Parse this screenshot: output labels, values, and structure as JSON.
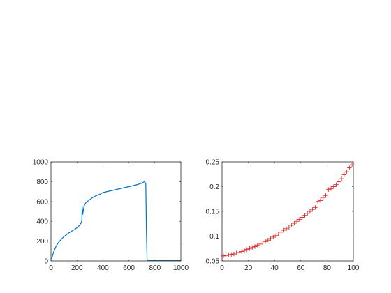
{
  "chart_data": [
    {
      "type": "line",
      "title": "",
      "xlabel": "",
      "ylabel": "",
      "xlim": [
        0,
        1000
      ],
      "ylim": [
        0,
        1000
      ],
      "xticks": [
        0,
        200,
        400,
        600,
        800,
        1000
      ],
      "yticks": [
        0,
        200,
        400,
        600,
        800,
        1000
      ],
      "xtick_labels": [
        "0",
        "200",
        "400",
        "600",
        "800",
        "1000"
      ],
      "ytick_labels": [
        "0",
        "200",
        "400",
        "600",
        "800",
        "1000"
      ],
      "grid": false,
      "color": "#0072BD",
      "series": [
        {
          "x": [
            5,
            20,
            40,
            60,
            80,
            100,
            120,
            140,
            160,
            180,
            200,
            220,
            235,
            238,
            240,
            245,
            250,
            255,
            260,
            270,
            280,
            300,
            320,
            350,
            380,
            400,
            450,
            500,
            550,
            600,
            650,
            700,
            720,
            725,
            730,
            735,
            740,
            800,
            900,
            1000
          ],
          "y": [
            20,
            90,
            150,
            190,
            220,
            245,
            265,
            285,
            300,
            315,
            335,
            360,
            390,
            410,
            550,
            470,
            520,
            550,
            570,
            590,
            600,
            620,
            640,
            660,
            675,
            690,
            705,
            720,
            735,
            750,
            765,
            785,
            800,
            790,
            785,
            300,
            5,
            5,
            5,
            5
          ]
        }
      ]
    },
    {
      "type": "scatter",
      "title": "",
      "xlabel": "",
      "ylabel": "",
      "xlim": [
        0,
        100
      ],
      "ylim": [
        0.05,
        0.25
      ],
      "xticks": [
        0,
        20,
        40,
        60,
        80,
        100
      ],
      "yticks": [
        0.05,
        0.1,
        0.15,
        0.2,
        0.25
      ],
      "xtick_labels": [
        "0",
        "20",
        "40",
        "60",
        "80",
        "100"
      ],
      "ytick_labels": [
        "0.05",
        "0.1",
        "0.15",
        "0.2",
        "0.25"
      ],
      "grid": false,
      "marker": "+",
      "color": "#D62728",
      "series": [
        {
          "x": [
            1,
            3,
            5,
            7,
            9,
            11,
            13,
            15,
            17,
            19,
            21,
            23,
            25,
            27,
            29,
            31,
            33,
            35,
            37,
            39,
            41,
            43,
            45,
            47,
            49,
            51,
            53,
            55,
            57,
            59,
            61,
            63,
            65,
            67,
            69,
            71,
            73,
            75,
            77,
            79,
            81,
            83,
            85,
            87,
            89,
            91,
            93,
            95,
            97,
            99
          ],
          "y": [
            0.06,
            0.061,
            0.062,
            0.063,
            0.064,
            0.066,
            0.067,
            0.069,
            0.071,
            0.073,
            0.075,
            0.077,
            0.079,
            0.082,
            0.084,
            0.086,
            0.089,
            0.092,
            0.095,
            0.098,
            0.101,
            0.104,
            0.108,
            0.112,
            0.115,
            0.118,
            0.122,
            0.126,
            0.13,
            0.134,
            0.138,
            0.142,
            0.146,
            0.15,
            0.154,
            0.158,
            0.17,
            0.172,
            0.178,
            0.182,
            0.194,
            0.196,
            0.2,
            0.204,
            0.21,
            0.216,
            0.224,
            0.23,
            0.238,
            0.244
          ]
        }
      ]
    }
  ]
}
